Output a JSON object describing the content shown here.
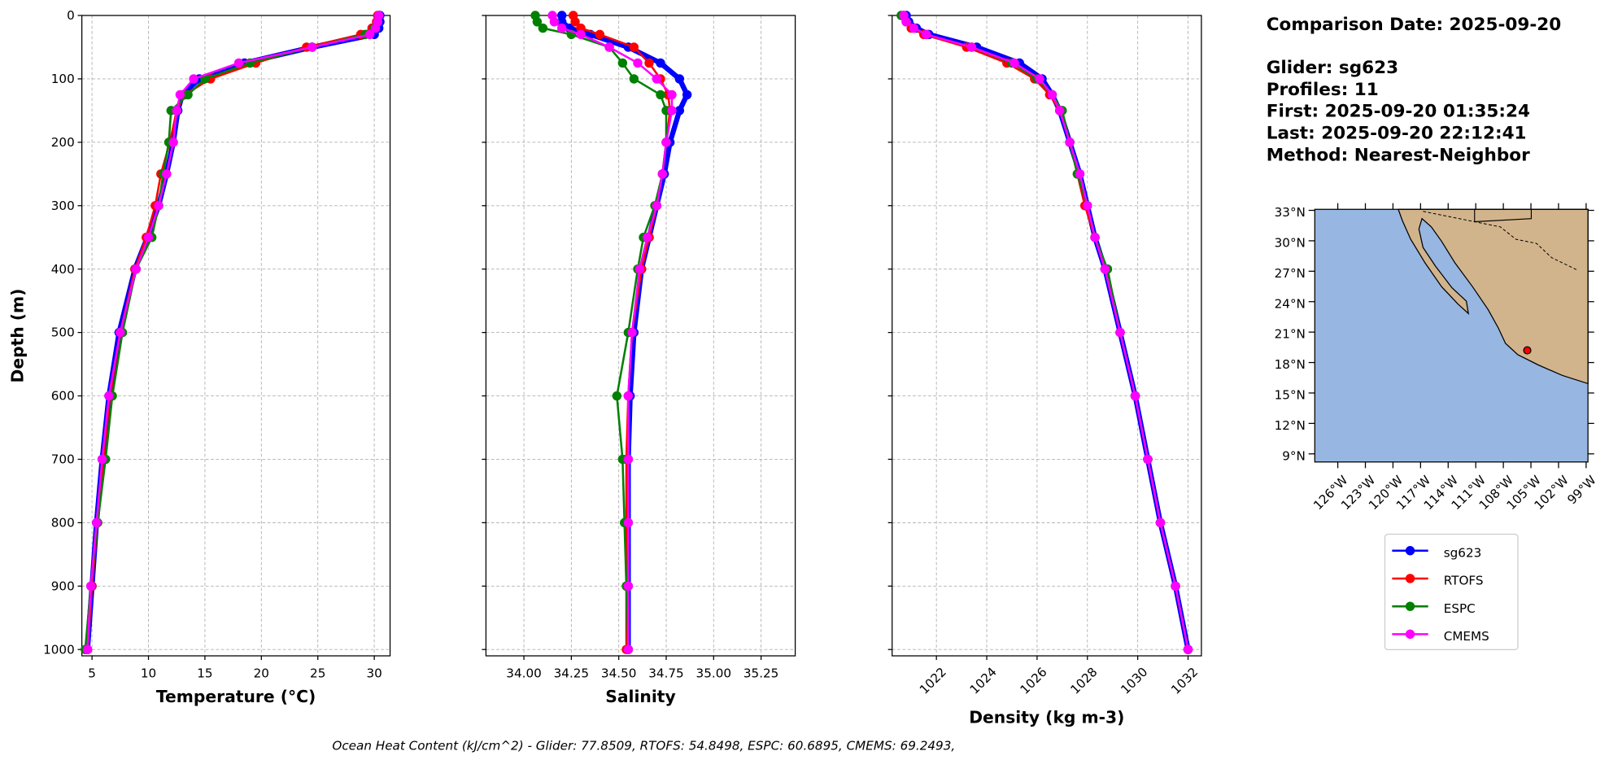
{
  "info_title": "Comparison Date: 2025-09-20",
  "info_details": [
    "Glider: sg623",
    "Profiles: 11",
    "First: 2025-09-20 01:35:24",
    "Last: 2025-09-20 22:12:41",
    "Method: Nearest-Neighbor"
  ],
  "footer": "Ocean Heat Content (kJ/cm^2) - Glider: 77.8509,  RTOFS: 54.8498,  ESPC: 60.6895,  CMEMS: 69.2493,",
  "chart_data": [
    {
      "type": "line",
      "xlabel": "Temperature (°C)",
      "ylabel": "Depth (m)",
      "show_ytick_labels": true,
      "legend": true,
      "xlim": [
        4.1,
        31.4
      ],
      "xticks": [
        5,
        10,
        15,
        20,
        25,
        30
      ],
      "ylim": [
        0,
        1010
      ],
      "invert_y": true,
      "yticks": [
        0,
        100,
        200,
        300,
        400,
        500,
        600,
        700,
        800,
        900,
        1000
      ],
      "grid": true,
      "y": [
        0,
        10,
        20,
        30,
        50,
        75,
        100,
        125,
        150,
        200,
        250,
        300,
        350,
        400,
        500,
        600,
        700,
        800,
        900,
        1000
      ],
      "series": [
        {
          "name": "sg623",
          "color": "#0000ff",
          "linewidth": 5,
          "values": [
            30.5,
            30.5,
            30.4,
            30.0,
            24.5,
            18.5,
            14.5,
            13.0,
            12.6,
            12.2,
            11.6,
            10.9,
            9.9,
            8.8,
            7.4,
            6.5,
            5.9,
            5.4,
            5.0,
            4.6
          ]
        },
        {
          "name": "RTOFS",
          "color": "#ff0000",
          "linewidth": 2,
          "values": [
            30.3,
            30.2,
            29.8,
            28.8,
            24.0,
            19.5,
            15.5,
            13.2,
            12.5,
            11.9,
            11.1,
            10.6,
            9.8,
            8.8,
            7.5,
            6.6,
            6.0,
            5.5,
            5.0,
            4.6
          ]
        },
        {
          "name": "ESPC",
          "color": "#008000",
          "linewidth": 2,
          "values": [
            30.4,
            30.3,
            30.0,
            29.2,
            24.5,
            19.0,
            15.0,
            13.5,
            12.0,
            11.8,
            11.3,
            10.9,
            10.3,
            8.9,
            7.7,
            6.8,
            6.2,
            5.5,
            4.9,
            4.4
          ]
        },
        {
          "name": "CMEMS",
          "color": "#ff00ff",
          "linewidth": 2,
          "values": [
            30.4,
            30.3,
            30.1,
            29.6,
            24.5,
            18.0,
            14.0,
            12.8,
            12.5,
            12.2,
            11.6,
            10.9,
            10.0,
            8.9,
            7.5,
            6.5,
            5.9,
            5.4,
            4.9,
            4.6
          ]
        }
      ]
    },
    {
      "type": "line",
      "xlabel": "Salinity",
      "show_ytick_labels": false,
      "xlim": [
        33.8,
        35.43
      ],
      "xticks": [
        {
          "value": 34,
          "label": "34.00"
        },
        {
          "value": 34.25,
          "label": "34.25"
        },
        {
          "value": 34.5,
          "label": "34.50"
        },
        {
          "value": 34.75,
          "label": "34.75"
        },
        {
          "value": 35,
          "label": "35.00"
        },
        {
          "value": 35.25,
          "label": "35.25"
        }
      ],
      "ylim": [
        0,
        1010
      ],
      "invert_y": true,
      "yticks": [
        0,
        100,
        200,
        300,
        400,
        500,
        600,
        700,
        800,
        900,
        1000
      ],
      "grid": true,
      "y": [
        0,
        10,
        20,
        30,
        50,
        75,
        100,
        125,
        150,
        200,
        250,
        300,
        350,
        400,
        500,
        600,
        700,
        800,
        900,
        1000
      ],
      "series": [
        {
          "name": "sg623",
          "color": "#0000ff",
          "linewidth": 5,
          "values": [
            34.2,
            34.2,
            34.24,
            34.35,
            34.55,
            34.72,
            34.82,
            34.86,
            34.82,
            34.77,
            34.74,
            34.7,
            34.66,
            34.62,
            34.58,
            34.56,
            34.55,
            34.55,
            34.55,
            34.55
          ]
        },
        {
          "name": "RTOFS",
          "color": "#ff0000",
          "linewidth": 2,
          "values": [
            34.26,
            34.27,
            34.3,
            34.4,
            34.58,
            34.66,
            34.72,
            34.76,
            34.77,
            34.75,
            34.73,
            34.7,
            34.66,
            34.62,
            34.57,
            34.55,
            34.54,
            34.54,
            34.54,
            34.54
          ]
        },
        {
          "name": "ESPC",
          "color": "#008000",
          "linewidth": 2,
          "values": [
            34.06,
            34.07,
            34.1,
            34.25,
            34.45,
            34.52,
            34.58,
            34.72,
            34.75,
            34.75,
            34.73,
            34.69,
            34.63,
            34.6,
            34.55,
            34.49,
            34.52,
            34.53,
            34.54,
            34.55
          ]
        },
        {
          "name": "CMEMS",
          "color": "#ff00ff",
          "linewidth": 2,
          "values": [
            34.15,
            34.16,
            34.2,
            34.3,
            34.45,
            34.6,
            34.7,
            34.78,
            34.78,
            34.75,
            34.73,
            34.7,
            34.65,
            34.61,
            34.57,
            34.55,
            34.55,
            34.55,
            34.55,
            34.55
          ]
        }
      ]
    },
    {
      "type": "line",
      "xlabel": "Density (kg m-3)",
      "show_ytick_labels": false,
      "xtick_rotation": 45,
      "xlim": [
        1020.24,
        1032.53
      ],
      "xticks": [
        1022,
        1024,
        1026,
        1028,
        1030,
        1032
      ],
      "ylim": [
        0,
        1010
      ],
      "invert_y": true,
      "yticks": [
        0,
        100,
        200,
        300,
        400,
        500,
        600,
        700,
        800,
        900,
        1000
      ],
      "grid": true,
      "y": [
        0,
        10,
        20,
        30,
        50,
        75,
        100,
        125,
        150,
        200,
        250,
        300,
        350,
        400,
        500,
        600,
        700,
        800,
        900,
        1000
      ],
      "series": [
        {
          "name": "sg623",
          "color": "#0000ff",
          "linewidth": 5,
          "values": [
            1020.8,
            1020.9,
            1021.2,
            1021.7,
            1023.6,
            1025.3,
            1026.2,
            1026.6,
            1026.9,
            1027.3,
            1027.7,
            1028.0,
            1028.3,
            1028.7,
            1029.3,
            1029.9,
            1030.4,
            1030.9,
            1031.5,
            1032.0
          ]
        },
        {
          "name": "RTOFS",
          "color": "#ff0000",
          "linewidth": 2,
          "values": [
            1020.7,
            1020.8,
            1021.0,
            1021.5,
            1023.2,
            1024.8,
            1025.9,
            1026.5,
            1026.9,
            1027.3,
            1027.6,
            1027.9,
            1028.3,
            1028.7,
            1029.3,
            1029.9,
            1030.4,
            1030.9,
            1031.5,
            1032.0
          ]
        },
        {
          "name": "ESPC",
          "color": "#008000",
          "linewidth": 2,
          "values": [
            1020.6,
            1020.8,
            1021.1,
            1021.6,
            1023.4,
            1025.0,
            1026.0,
            1026.6,
            1027.0,
            1027.3,
            1027.6,
            1028.0,
            1028.3,
            1028.8,
            1029.3,
            1029.9,
            1030.4,
            1030.9,
            1031.5,
            1032.0
          ]
        },
        {
          "name": "CMEMS",
          "color": "#ff00ff",
          "linewidth": 2,
          "values": [
            1020.7,
            1020.8,
            1021.1,
            1021.6,
            1023.4,
            1025.1,
            1026.1,
            1026.6,
            1026.9,
            1027.3,
            1027.7,
            1028.0,
            1028.3,
            1028.7,
            1029.3,
            1029.9,
            1030.4,
            1030.9,
            1031.5,
            1032.0
          ]
        }
      ]
    },
    {
      "type": "map",
      "xlim": [
        -128.5,
        -98.8
      ],
      "ylim": [
        8.2,
        33.1
      ],
      "xticks": [
        {
          "value": -126,
          "label": "126°W"
        },
        {
          "value": -123,
          "label": "123°W"
        },
        {
          "value": -120,
          "label": "120°W"
        },
        {
          "value": -117,
          "label": "117°W"
        },
        {
          "value": -114,
          "label": "114°W"
        },
        {
          "value": -111,
          "label": "111°W"
        },
        {
          "value": -108,
          "label": "108°W"
        },
        {
          "value": -105,
          "label": "105°W"
        },
        {
          "value": -102,
          "label": "102°W"
        },
        {
          "value": -99,
          "label": "99°W"
        }
      ],
      "yticks": [
        {
          "value": 33,
          "label": "33°N"
        },
        {
          "value": 30,
          "label": "30°N"
        },
        {
          "value": 27,
          "label": "27°N"
        },
        {
          "value": 24,
          "label": "24°N"
        },
        {
          "value": 21,
          "label": "21°N"
        },
        {
          "value": 18,
          "label": "18°N"
        },
        {
          "value": 15,
          "label": "15°N"
        },
        {
          "value": 12,
          "label": "12°N"
        },
        {
          "value": 9,
          "label": "9°N"
        }
      ],
      "x": [
        -105.4
      ],
      "y": [
        19.2
      ],
      "color": "#ff0000"
    }
  ]
}
